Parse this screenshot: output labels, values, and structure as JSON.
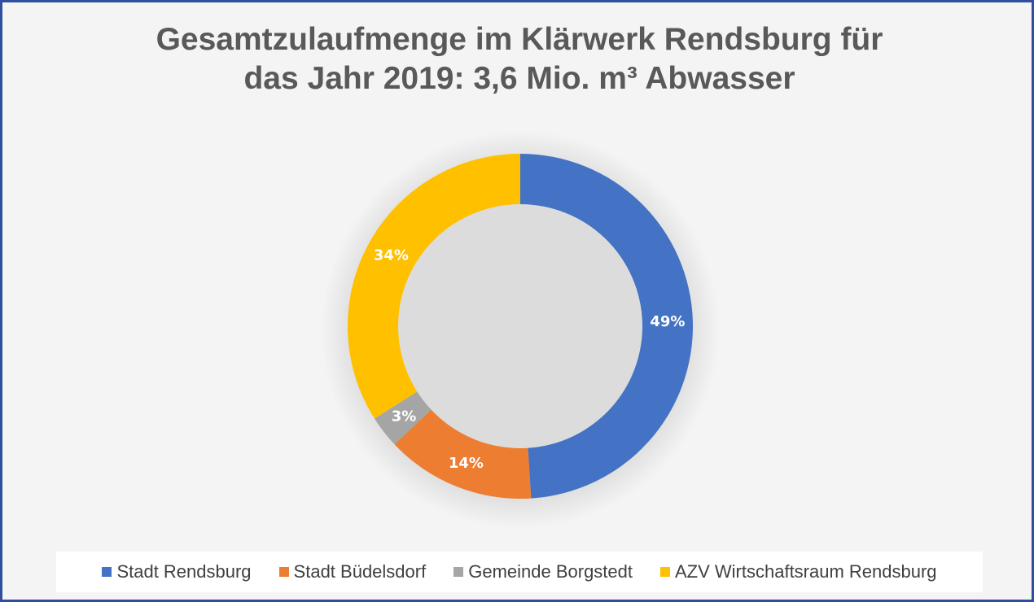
{
  "chart_data": {
    "type": "pie",
    "title_lines": [
      "Gesamtzulaufmenge im Klärwerk Rendsburg für",
      "das Jahr 2019: 3,6 Mio. m³ Abwasser"
    ],
    "hole": true,
    "categories": [
      "Stadt Rendsburg",
      "Stadt Büdelsdorf",
      "Gemeinde Borgstedt",
      "AZV Wirtschaftsraum Rendsburg"
    ],
    "values": [
      49,
      14,
      3,
      34
    ],
    "data_labels": [
      "49%",
      "14%",
      "3%",
      "34%"
    ],
    "colors": [
      "#4472c4",
      "#ed7d31",
      "#a5a5a5",
      "#ffc000"
    ],
    "legend_position": "bottom"
  }
}
